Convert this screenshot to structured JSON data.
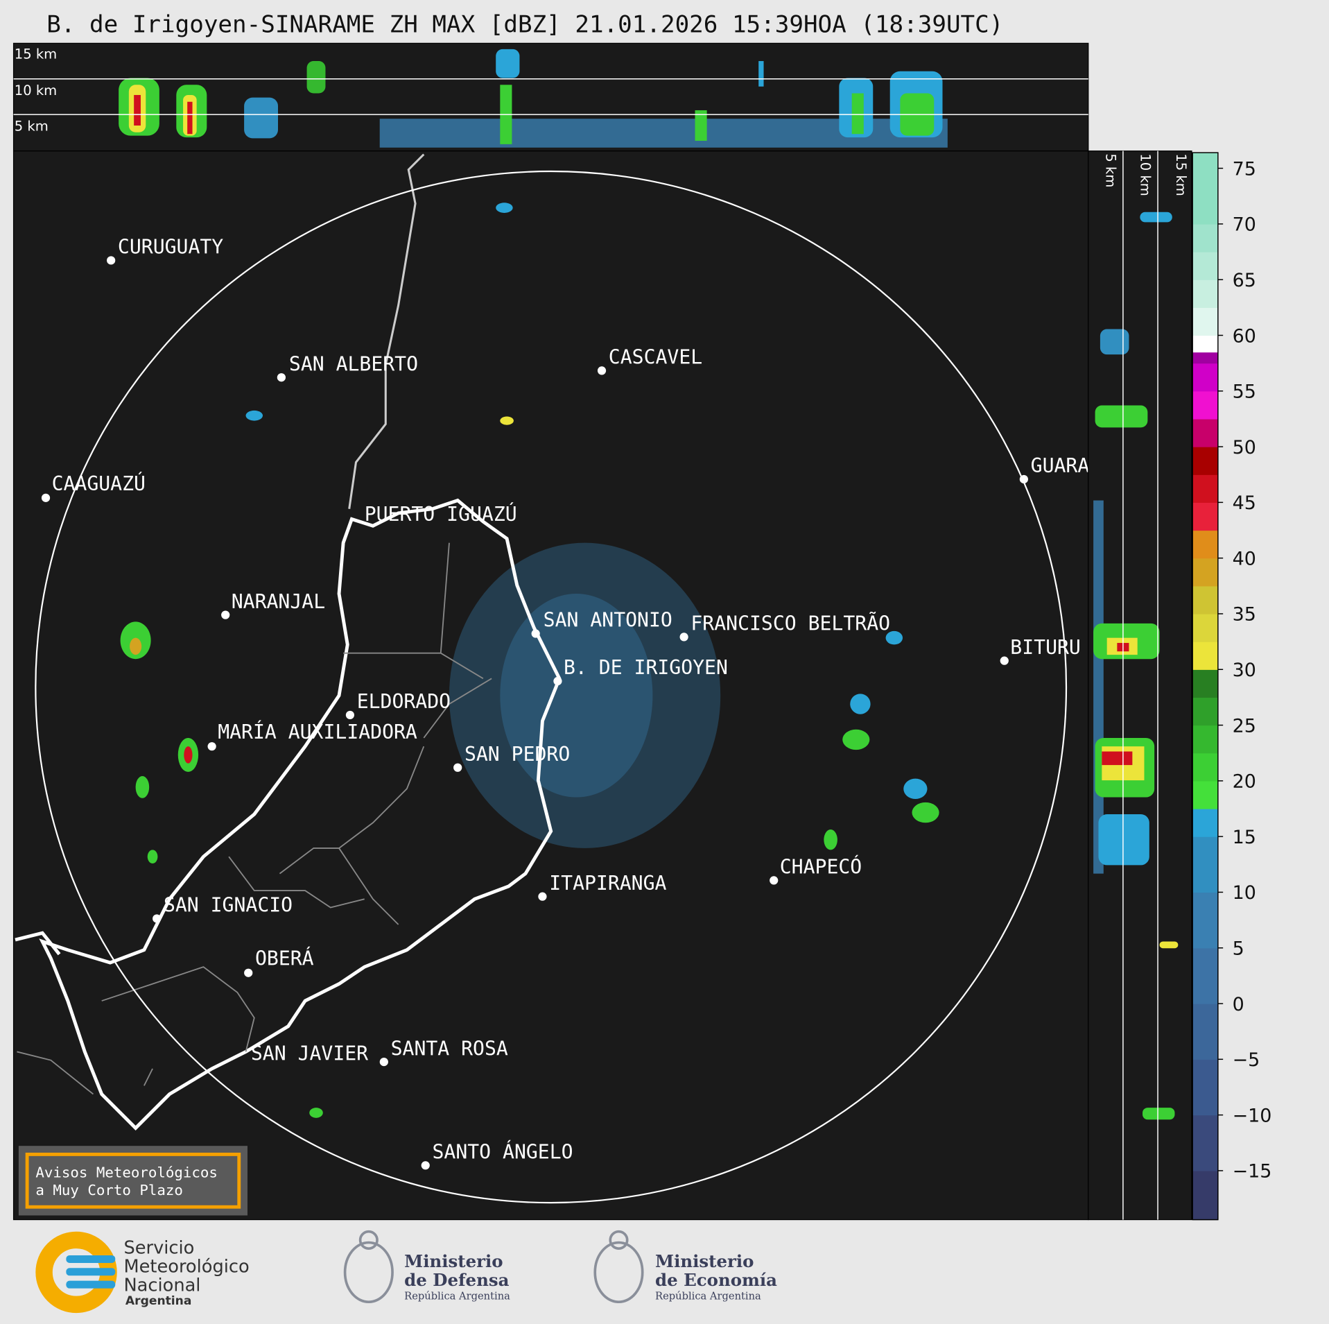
{
  "title": "B. de Irigoyen-SINARAME ZH MAX [dBZ] 21.01.2026 15:39HOA (18:39UTC)",
  "top_panel": {
    "height_labels": [
      "15 km",
      "10 km",
      "5 km"
    ]
  },
  "side_panel": {
    "height_labels": [
      "5 km",
      "10 km",
      "15 km"
    ]
  },
  "cities": [
    "CURUGUATY",
    "SAN ALBERTO",
    "CASCAVEL",
    "CAAGUAZÚ",
    "GUARA",
    "PUERTO IGUAZÚ",
    "NARANJAL",
    "SAN ANTONIO",
    "FRANCISCO BELTRÃO",
    "BITURU",
    "B. DE IRIGOYEN",
    "ELDORADO",
    "MARÍA AUXILIADORA",
    "SAN PEDRO",
    "CHAPECÓ",
    "ITAPIRANGA",
    "SAN IGNACIO",
    "OBERÁ",
    "SAN JAVIER",
    "SANTA ROSA",
    "SANTO ÁNGELO"
  ],
  "colorbar": {
    "lim": [
      -19.4,
      76.4
    ],
    "ticks": [
      75,
      70,
      65,
      60,
      55,
      50,
      45,
      40,
      35,
      30,
      25,
      20,
      15,
      10,
      5,
      0,
      {
        "value": -5,
        "label": "−5"
      },
      {
        "value": -10,
        "label": "−10"
      },
      {
        "value": -15,
        "label": "−15"
      }
    ],
    "bands": [
      {
        "from": -19.4,
        "color": "#363b69"
      },
      {
        "from": -15,
        "color": "#3a4a7c"
      },
      {
        "from": -10,
        "color": "#3b5a8f"
      },
      {
        "from": -5,
        "color": "#3c679a"
      },
      {
        "from": 0,
        "color": "#3d73a6"
      },
      {
        "from": 5,
        "color": "#3a80b2"
      },
      {
        "from": 10,
        "color": "#318fc0"
      },
      {
        "from": 15,
        "color": "#2ba5d8"
      },
      {
        "from": 17.5,
        "color": "#44e03a"
      },
      {
        "from": 20,
        "color": "#3ccf34"
      },
      {
        "from": 22.5,
        "color": "#35b82f"
      },
      {
        "from": 25,
        "color": "#2fa02a"
      },
      {
        "from": 27.5,
        "color": "#287f22"
      },
      {
        "from": 30,
        "color": "#ece43a"
      },
      {
        "from": 32.5,
        "color": "#dcd63a"
      },
      {
        "from": 35,
        "color": "#cfc433"
      },
      {
        "from": 37.5,
        "color": "#d4a321"
      },
      {
        "from": 40,
        "color": "#e08d1a"
      },
      {
        "from": 42.5,
        "color": "#e8213a"
      },
      {
        "from": 45,
        "color": "#d0101e"
      },
      {
        "from": 47.5,
        "color": "#a80000"
      },
      {
        "from": 50,
        "color": "#c8006a"
      },
      {
        "from": 52.5,
        "color": "#f010d0"
      },
      {
        "from": 55,
        "color": "#d000c8"
      },
      {
        "from": 57.5,
        "color": "#a000a0"
      },
      {
        "from": 58.5,
        "color": "#ffffff"
      },
      {
        "from": 60,
        "color": "#e0f6ee"
      },
      {
        "from": 62.5,
        "color": "#c8efe0"
      },
      {
        "from": 65,
        "color": "#b4e9d6"
      },
      {
        "from": 67.5,
        "color": "#a0e3cc"
      },
      {
        "from": 70,
        "color": "#8edfc2"
      }
    ]
  },
  "warning_box": {
    "lines": [
      "Avisos Meteorológicos",
      "a Muy Corto Plazo"
    ]
  },
  "footer": {
    "smn": [
      "Servicio",
      "Meteorológico",
      "Nacional",
      "Argentina"
    ],
    "defensa": [
      "Ministerio",
      "de Defensa",
      "República Argentina"
    ],
    "economia": [
      "Ministerio",
      "de Economía",
      "República Argentina"
    ]
  }
}
